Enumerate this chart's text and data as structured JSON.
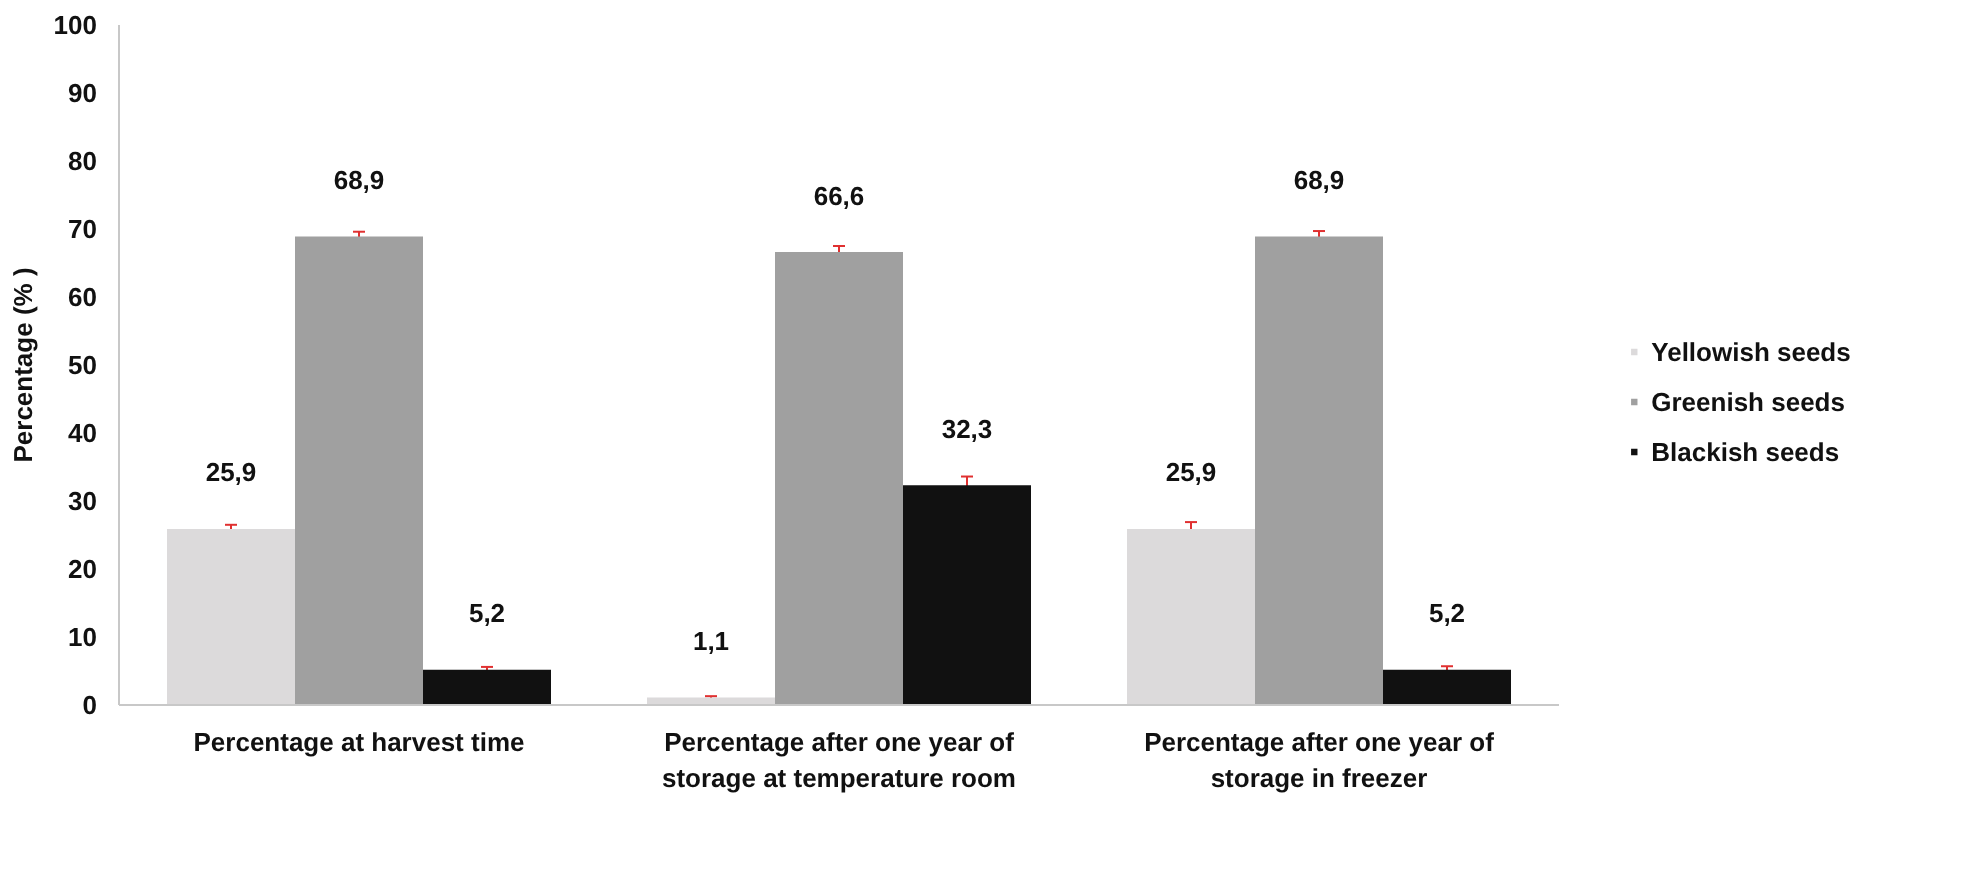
{
  "chart_data": {
    "type": "bar",
    "ylabel": "Percentage (% )",
    "categories": [
      "Percentage at harvest time",
      "Percentage after one year of\nstorage at temperature room",
      "Percentage after one year of\nstorage in freezer"
    ],
    "series": [
      {
        "name": "Yellowish seeds",
        "color": "#dcdadb",
        "values": [
          25.9,
          1.1,
          25.9
        ],
        "errors": [
          0.6,
          0.2,
          1.0
        ],
        "value_labels": [
          "25,9",
          "1,1",
          "25,9"
        ]
      },
      {
        "name": "Greenish seeds",
        "color": "#a0a0a0",
        "values": [
          68.9,
          66.6,
          68.9
        ],
        "errors": [
          0.7,
          0.9,
          0.8
        ],
        "value_labels": [
          "68,9",
          "66,6",
          "68,9"
        ]
      },
      {
        "name": "Blackish seeds",
        "color": "#111111",
        "values": [
          5.2,
          32.3,
          5.2
        ],
        "errors": [
          0.4,
          1.3,
          0.5
        ],
        "value_labels": [
          "5,2",
          "32,3",
          "5,2"
        ]
      }
    ],
    "ylim": [
      0,
      100
    ],
    "yticks": [
      0,
      10,
      20,
      30,
      40,
      50,
      60,
      70,
      80,
      90,
      100
    ],
    "grid": false,
    "legend": "right"
  }
}
